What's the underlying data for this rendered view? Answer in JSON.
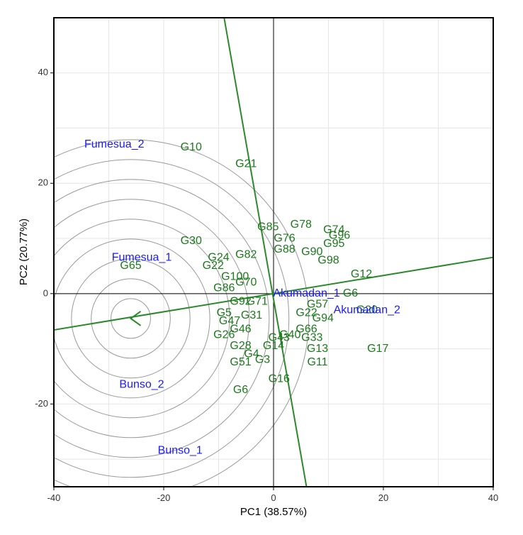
{
  "chart_data": {
    "type": "scatter",
    "title": "",
    "xlabel": "PC1 (38.57%)",
    "ylabel": "PC2 (20.77%)",
    "xlim": [
      -40,
      40
    ],
    "ylim": [
      -35,
      50
    ],
    "x_ticks": [
      -40,
      -20,
      0,
      20,
      40
    ],
    "y_ticks": [
      -20,
      0,
      20,
      40
    ],
    "grid": true,
    "colors": {
      "genotype": "#1a7a1a",
      "environment": "#1a1aff",
      "axis_line": "#2a8a2a",
      "circle": "#999999",
      "grid": "#e6e6e6"
    },
    "average_environment_axis": {
      "slope": 0.1645,
      "arrow_head": [
        -26,
        -4.5
      ],
      "concentric_circles_center": [
        -26,
        -4.5
      ],
      "concentric_circles_step": 3.6,
      "concentric_circles_count": 9
    },
    "perpendicular_line": {
      "through": [
        0,
        0
      ],
      "x_at_top": -9,
      "y_top": 50,
      "x_at_bottom": 6,
      "y_bottom": -35
    },
    "environments": [
      {
        "name": "Fumesua_2",
        "x": -29,
        "y": 27
      },
      {
        "name": "Fumesua_1",
        "x": -24,
        "y": 6.5
      },
      {
        "name": "Bunso_2",
        "x": -24,
        "y": -16.5
      },
      {
        "name": "Bunso_1",
        "x": -17,
        "y": -28.5
      },
      {
        "name": "Akumadan_2",
        "x": 17,
        "y": -3
      },
      {
        "name": "Akumadan_1",
        "x": 6,
        "y": 0
      }
    ],
    "genotypes": [
      {
        "name": "G10",
        "x": -15,
        "y": 26.5
      },
      {
        "name": "G21",
        "x": -5,
        "y": 23.5
      },
      {
        "name": "G30",
        "x": -15,
        "y": 9.5
      },
      {
        "name": "G65",
        "x": -26,
        "y": 5
      },
      {
        "name": "G24",
        "x": -10,
        "y": 6.5
      },
      {
        "name": "G22",
        "x": -11,
        "y": 5
      },
      {
        "name": "G82",
        "x": -5,
        "y": 7
      },
      {
        "name": "G100",
        "x": -7,
        "y": 3
      },
      {
        "name": "G70",
        "x": -5,
        "y": 2
      },
      {
        "name": "G86",
        "x": -9,
        "y": 1
      },
      {
        "name": "G85",
        "x": -1,
        "y": 12
      },
      {
        "name": "G78",
        "x": 5,
        "y": 12.5
      },
      {
        "name": "G76",
        "x": 2,
        "y": 10
      },
      {
        "name": "G88",
        "x": 2,
        "y": 8
      },
      {
        "name": "G74",
        "x": 11,
        "y": 11.5
      },
      {
        "name": "G96",
        "x": 12,
        "y": 10.5
      },
      {
        "name": "G95",
        "x": 11,
        "y": 9
      },
      {
        "name": "G98",
        "x": 10,
        "y": 6
      },
      {
        "name": "G90",
        "x": 7,
        "y": 7.5
      },
      {
        "name": "G12",
        "x": 16,
        "y": 3.5
      },
      {
        "name": "G6",
        "x": 14,
        "y": 0
      },
      {
        "name": "G20",
        "x": 17,
        "y": -3
      },
      {
        "name": "G17",
        "x": 19,
        "y": -10
      },
      {
        "name": "G13",
        "x": 8,
        "y": -10
      },
      {
        "name": "G11",
        "x": 8,
        "y": -12.5
      },
      {
        "name": "G16",
        "x": 1,
        "y": -15.5
      },
      {
        "name": "G6",
        "x": -6,
        "y": -17.5
      },
      {
        "name": "G3",
        "x": -2,
        "y": -12
      },
      {
        "name": "G4",
        "x": -4,
        "y": -11
      },
      {
        "name": "G51",
        "x": -6,
        "y": -12.5
      },
      {
        "name": "G28",
        "x": -6,
        "y": -9.5
      },
      {
        "name": "G26",
        "x": -9,
        "y": -7.5
      },
      {
        "name": "G14",
        "x": 0,
        "y": -9.5
      },
      {
        "name": "G43",
        "x": 1,
        "y": -8
      },
      {
        "name": "G40",
        "x": 3,
        "y": -7.5
      },
      {
        "name": "G33",
        "x": 7,
        "y": -8
      },
      {
        "name": "G66",
        "x": 6,
        "y": -6.5
      },
      {
        "name": "G94",
        "x": 9,
        "y": -4.5
      },
      {
        "name": "G22",
        "x": 6,
        "y": -3.5
      },
      {
        "name": "G5",
        "x": -9,
        "y": -3.5
      },
      {
        "name": "G47",
        "x": -8,
        "y": -5
      },
      {
        "name": "G46",
        "x": -6,
        "y": -6.5
      },
      {
        "name": "G92",
        "x": -6,
        "y": -1.5
      },
      {
        "name": "G71",
        "x": -3,
        "y": -1.5
      },
      {
        "name": "G31",
        "x": -4,
        "y": -4
      },
      {
        "name": "G57",
        "x": 8,
        "y": -2
      }
    ]
  }
}
